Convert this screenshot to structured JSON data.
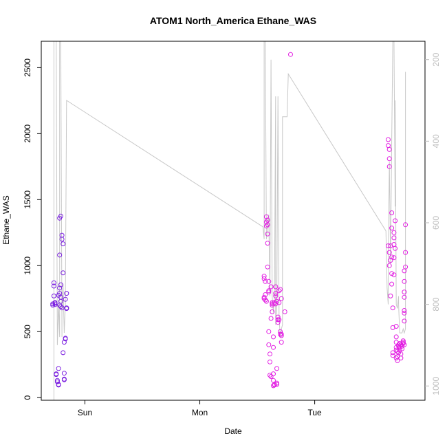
{
  "chart_data": {
    "type": "scatter",
    "title": "ATOM1 North_America Ethane_WAS",
    "xlabel": "Date",
    "ylabel": "Ethane_WAS",
    "x_ticks": [
      {
        "label": "Sun",
        "value": 1.0
      },
      {
        "label": "Mon",
        "value": 2.0
      },
      {
        "label": "Tue",
        "value": 3.0
      }
    ],
    "xlim": [
      0.62,
      3.96
    ],
    "ylim": [
      -20,
      2700
    ],
    "y_ticks": [
      0,
      500,
      1000,
      1500,
      2000,
      2500
    ],
    "y2_ticks": [
      200,
      400,
      600,
      800,
      1000
    ],
    "y2lim": [
      1035,
      155
    ],
    "grid": false,
    "colors": {
      "points_early": "#7a1ee0",
      "points_late": "#e21ee2",
      "line": "#c8c8c8",
      "right_axis": "#bdbdbd"
    },
    "points": [
      {
        "x": 0.72,
        "y": 700
      },
      {
        "x": 0.72,
        "y": 710
      },
      {
        "x": 0.73,
        "y": 870
      },
      {
        "x": 0.73,
        "y": 845
      },
      {
        "x": 0.73,
        "y": 770
      },
      {
        "x": 0.74,
        "y": 720
      },
      {
        "x": 0.74,
        "y": 715
      },
      {
        "x": 0.74,
        "y": 705
      },
      {
        "x": 0.75,
        "y": 180
      },
      {
        "x": 0.75,
        "y": 175
      },
      {
        "x": 0.76,
        "y": 120
      },
      {
        "x": 0.76,
        "y": 130
      },
      {
        "x": 0.77,
        "y": 100
      },
      {
        "x": 0.77,
        "y": 95
      },
      {
        "x": 0.77,
        "y": 220
      },
      {
        "x": 0.77,
        "y": 775
      },
      {
        "x": 0.78,
        "y": 790
      },
      {
        "x": 0.78,
        "y": 830
      },
      {
        "x": 0.78,
        "y": 700
      },
      {
        "x": 0.79,
        "y": 690
      },
      {
        "x": 0.79,
        "y": 760
      },
      {
        "x": 0.78,
        "y": 1080
      },
      {
        "x": 0.78,
        "y": 1360
      },
      {
        "x": 0.79,
        "y": 1375
      },
      {
        "x": 0.79,
        "y": 855
      },
      {
        "x": 0.79,
        "y": 730
      },
      {
        "x": 0.8,
        "y": 680
      },
      {
        "x": 0.8,
        "y": 1230
      },
      {
        "x": 0.8,
        "y": 1200
      },
      {
        "x": 0.81,
        "y": 1165
      },
      {
        "x": 0.81,
        "y": 945
      },
      {
        "x": 0.81,
        "y": 340
      },
      {
        "x": 0.82,
        "y": 135
      },
      {
        "x": 0.82,
        "y": 140
      },
      {
        "x": 0.82,
        "y": 185
      },
      {
        "x": 0.82,
        "y": 420
      },
      {
        "x": 0.83,
        "y": 445
      },
      {
        "x": 0.83,
        "y": 450
      },
      {
        "x": 0.83,
        "y": 745
      },
      {
        "x": 0.84,
        "y": 790
      },
      {
        "x": 0.84,
        "y": 680
      },
      {
        "x": 0.84,
        "y": 675
      },
      {
        "x": 2.56,
        "y": 760
      },
      {
        "x": 2.56,
        "y": 750
      },
      {
        "x": 2.56,
        "y": 920
      },
      {
        "x": 2.56,
        "y": 900
      },
      {
        "x": 2.57,
        "y": 880
      },
      {
        "x": 2.57,
        "y": 780
      },
      {
        "x": 2.57,
        "y": 740
      },
      {
        "x": 2.58,
        "y": 730
      },
      {
        "x": 2.58,
        "y": 1300
      },
      {
        "x": 2.58,
        "y": 1330
      },
      {
        "x": 2.58,
        "y": 1370
      },
      {
        "x": 2.59,
        "y": 1345
      },
      {
        "x": 2.59,
        "y": 1310
      },
      {
        "x": 2.59,
        "y": 1240
      },
      {
        "x": 2.59,
        "y": 1170
      },
      {
        "x": 2.59,
        "y": 990
      },
      {
        "x": 2.6,
        "y": 880
      },
      {
        "x": 2.6,
        "y": 810
      },
      {
        "x": 2.6,
        "y": 800
      },
      {
        "x": 2.6,
        "y": 500
      },
      {
        "x": 2.6,
        "y": 400
      },
      {
        "x": 2.61,
        "y": 330
      },
      {
        "x": 2.61,
        "y": 270
      },
      {
        "x": 2.61,
        "y": 170
      },
      {
        "x": 2.62,
        "y": 160
      },
      {
        "x": 2.62,
        "y": 600
      },
      {
        "x": 2.62,
        "y": 840
      },
      {
        "x": 2.63,
        "y": 720
      },
      {
        "x": 2.63,
        "y": 710
      },
      {
        "x": 2.63,
        "y": 700
      },
      {
        "x": 2.63,
        "y": 650
      },
      {
        "x": 2.64,
        "y": 460
      },
      {
        "x": 2.64,
        "y": 380
      },
      {
        "x": 2.64,
        "y": 180
      },
      {
        "x": 2.64,
        "y": 130
      },
      {
        "x": 2.64,
        "y": 90
      },
      {
        "x": 2.65,
        "y": 100
      },
      {
        "x": 2.65,
        "y": 95
      },
      {
        "x": 2.65,
        "y": 720
      },
      {
        "x": 2.66,
        "y": 710
      },
      {
        "x": 2.66,
        "y": 770
      },
      {
        "x": 2.66,
        "y": 790
      },
      {
        "x": 2.66,
        "y": 840
      },
      {
        "x": 2.67,
        "y": 730
      },
      {
        "x": 2.67,
        "y": 220
      },
      {
        "x": 2.67,
        "y": 110
      },
      {
        "x": 2.67,
        "y": 100
      },
      {
        "x": 2.68,
        "y": 610
      },
      {
        "x": 2.68,
        "y": 590
      },
      {
        "x": 2.68,
        "y": 570
      },
      {
        "x": 2.69,
        "y": 590
      },
      {
        "x": 2.69,
        "y": 720
      },
      {
        "x": 2.69,
        "y": 810
      },
      {
        "x": 2.7,
        "y": 820
      },
      {
        "x": 2.7,
        "y": 500
      },
      {
        "x": 2.7,
        "y": 480
      },
      {
        "x": 2.71,
        "y": 470
      },
      {
        "x": 2.71,
        "y": 480
      },
      {
        "x": 2.71,
        "y": 420
      },
      {
        "x": 2.71,
        "y": 750
      },
      {
        "x": 2.74,
        "y": 650
      },
      {
        "x": 2.79,
        "y": 2600
      },
      {
        "x": 3.64,
        "y": 1150
      },
      {
        "x": 3.64,
        "y": 1955
      },
      {
        "x": 3.64,
        "y": 1910
      },
      {
        "x": 3.65,
        "y": 1880
      },
      {
        "x": 3.65,
        "y": 1810
      },
      {
        "x": 3.65,
        "y": 1750
      },
      {
        "x": 3.65,
        "y": 1100
      },
      {
        "x": 3.65,
        "y": 1000
      },
      {
        "x": 3.66,
        "y": 770
      },
      {
        "x": 3.66,
        "y": 1040
      },
      {
        "x": 3.66,
        "y": 1150
      },
      {
        "x": 3.67,
        "y": 1400
      },
      {
        "x": 3.67,
        "y": 1285
      },
      {
        "x": 3.67,
        "y": 1065
      },
      {
        "x": 3.67,
        "y": 940
      },
      {
        "x": 3.67,
        "y": 860
      },
      {
        "x": 3.68,
        "y": 680
      },
      {
        "x": 3.68,
        "y": 530
      },
      {
        "x": 3.68,
        "y": 340
      },
      {
        "x": 3.68,
        "y": 320
      },
      {
        "x": 3.69,
        "y": 1250
      },
      {
        "x": 3.69,
        "y": 1210
      },
      {
        "x": 3.69,
        "y": 1160
      },
      {
        "x": 3.69,
        "y": 1060
      },
      {
        "x": 3.69,
        "y": 930
      },
      {
        "x": 3.7,
        "y": 1340
      },
      {
        "x": 3.7,
        "y": 1130
      },
      {
        "x": 3.71,
        "y": 540
      },
      {
        "x": 3.71,
        "y": 460
      },
      {
        "x": 3.71,
        "y": 420
      },
      {
        "x": 3.71,
        "y": 380
      },
      {
        "x": 3.71,
        "y": 360
      },
      {
        "x": 3.71,
        "y": 300
      },
      {
        "x": 3.72,
        "y": 280
      },
      {
        "x": 3.72,
        "y": 310
      },
      {
        "x": 3.72,
        "y": 350
      },
      {
        "x": 3.73,
        "y": 390
      },
      {
        "x": 3.73,
        "y": 400
      },
      {
        "x": 3.73,
        "y": 340
      },
      {
        "x": 3.74,
        "y": 410
      },
      {
        "x": 3.74,
        "y": 380
      },
      {
        "x": 3.74,
        "y": 360
      },
      {
        "x": 3.75,
        "y": 330
      },
      {
        "x": 3.75,
        "y": 300
      },
      {
        "x": 3.75,
        "y": 400
      },
      {
        "x": 3.76,
        "y": 370
      },
      {
        "x": 3.76,
        "y": 390
      },
      {
        "x": 3.77,
        "y": 420
      },
      {
        "x": 3.77,
        "y": 430
      },
      {
        "x": 3.77,
        "y": 420
      },
      {
        "x": 3.77,
        "y": 410
      },
      {
        "x": 3.78,
        "y": 400
      },
      {
        "x": 3.78,
        "y": 580
      },
      {
        "x": 3.78,
        "y": 640
      },
      {
        "x": 3.78,
        "y": 660
      },
      {
        "x": 3.78,
        "y": 760
      },
      {
        "x": 3.78,
        "y": 800
      },
      {
        "x": 3.78,
        "y": 880
      },
      {
        "x": 3.78,
        "y": 960
      },
      {
        "x": 3.79,
        "y": 990
      },
      {
        "x": 3.79,
        "y": 1100
      },
      {
        "x": 3.79,
        "y": 1310
      }
    ],
    "line": [
      [
        0.73,
        1035
      ],
      [
        0.73,
        155
      ],
      [
        0.75,
        155
      ],
      [
        0.76,
        900
      ],
      [
        0.77,
        800
      ],
      [
        0.78,
        880
      ],
      [
        0.78,
        155
      ],
      [
        0.79,
        155
      ],
      [
        0.8,
        880
      ],
      [
        0.8,
        820
      ],
      [
        0.81,
        750
      ],
      [
        0.82,
        870
      ],
      [
        0.83,
        800
      ],
      [
        0.83,
        780
      ],
      [
        0.84,
        300
      ],
      [
        2.55,
        610
      ],
      [
        2.56,
        640
      ],
      [
        2.56,
        155
      ],
      [
        2.57,
        155
      ],
      [
        2.58,
        640
      ],
      [
        2.6,
        580
      ],
      [
        2.61,
        780
      ],
      [
        2.62,
        200
      ],
      [
        2.63,
        780
      ],
      [
        2.64,
        820
      ],
      [
        2.65,
        780
      ],
      [
        2.66,
        290
      ],
      [
        2.66,
        850
      ],
      [
        2.67,
        800
      ],
      [
        2.68,
        290
      ],
      [
        2.69,
        830
      ],
      [
        2.7,
        880
      ],
      [
        2.71,
        860
      ],
      [
        2.72,
        850
      ],
      [
        2.72,
        340
      ],
      [
        2.76,
        340
      ],
      [
        2.77,
        235
      ],
      [
        3.62,
        620
      ],
      [
        3.63,
        760
      ],
      [
        3.64,
        800
      ],
      [
        3.64,
        700
      ],
      [
        3.65,
        450
      ],
      [
        3.66,
        700
      ],
      [
        3.67,
        400
      ],
      [
        3.68,
        155
      ],
      [
        3.69,
        155
      ],
      [
        3.7,
        560
      ],
      [
        3.7,
        300
      ],
      [
        3.71,
        800
      ],
      [
        3.72,
        810
      ],
      [
        3.73,
        780
      ],
      [
        3.73,
        800
      ],
      [
        3.74,
        870
      ],
      [
        3.76,
        870
      ],
      [
        3.77,
        860
      ],
      [
        3.78,
        870
      ],
      [
        3.79,
        860
      ],
      [
        3.79,
        230
      ]
    ]
  }
}
